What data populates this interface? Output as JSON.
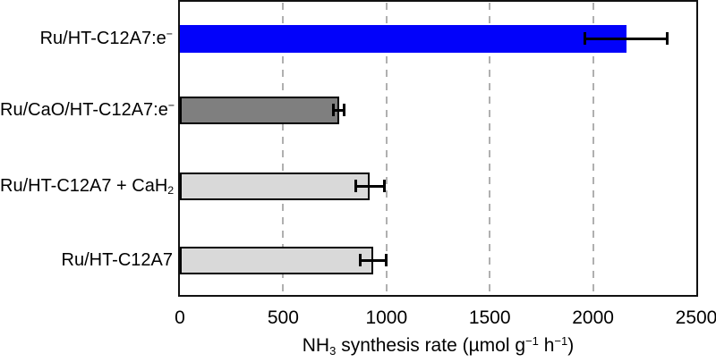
{
  "figure": {
    "background": "#ffffff",
    "axis_box_color": "#111111",
    "gridline_color": "#b0b0b0",
    "error_bar_color": "#000000"
  },
  "chart_data": {
    "type": "bar",
    "orientation": "horizontal",
    "title": "",
    "xlabel": "NH3 synthesis rate (µmol g−1 h−1)",
    "xlabel_rich": [
      {
        "t": "NH"
      },
      {
        "t": "3",
        "v": "sub"
      },
      {
        "t": " synthesis rate (µmol g"
      },
      {
        "t": "−1",
        "v": "sup"
      },
      {
        "t": " h"
      },
      {
        "t": "−1",
        "v": "sup"
      },
      {
        "t": ")"
      }
    ],
    "xlim": [
      0,
      2500
    ],
    "xticks": [
      0,
      500,
      1000,
      1500,
      2000,
      2500
    ],
    "gridlines": {
      "values": [
        500,
        1000,
        1500,
        2000
      ],
      "style": "dashed",
      "color": "#b0b0b0"
    },
    "grid": true,
    "legend": "none",
    "categories": [
      "Ru/HT-C12A7:e−",
      "Ru/CaO/HT-C12A7:e−",
      "Ru/HT-C12A7 + CaH2",
      "Ru/HT-C12A7"
    ],
    "values": [
      2160,
      770,
      920,
      935
    ],
    "errors": [
      200,
      25,
      70,
      63
    ],
    "bars": [
      {
        "label": "Ru/HT-C12A7:e−",
        "label_rich": [
          {
            "t": "Ru/HT-C12A7:e"
          },
          {
            "t": "−",
            "v": "sup"
          }
        ],
        "value": 2160,
        "error": 200,
        "color": "#0202fa",
        "border_color": ""
      },
      {
        "label": "Ru/CaO/HT-C12A7:e−",
        "label_rich": [
          {
            "t": "Ru/CaO/HT-C12A7:e"
          },
          {
            "t": "−",
            "v": "sup"
          }
        ],
        "value": 770,
        "error": 25,
        "color": "#7f7f7f",
        "border_color": "#000000"
      },
      {
        "label": "Ru/HT-C12A7 + CaH2",
        "label_rich": [
          {
            "t": "Ru/HT-C12A7 + CaH"
          },
          {
            "t": "2",
            "v": "sub"
          }
        ],
        "value": 920,
        "error": 70,
        "color": "#d9d9d9",
        "border_color": "#000000"
      },
      {
        "label": "Ru/HT-C12A7",
        "label_rich": [
          {
            "t": "Ru/HT-C12A7"
          }
        ],
        "value": 935,
        "error": 63,
        "color": "#d9d9d9",
        "border_color": "#000000"
      }
    ]
  }
}
